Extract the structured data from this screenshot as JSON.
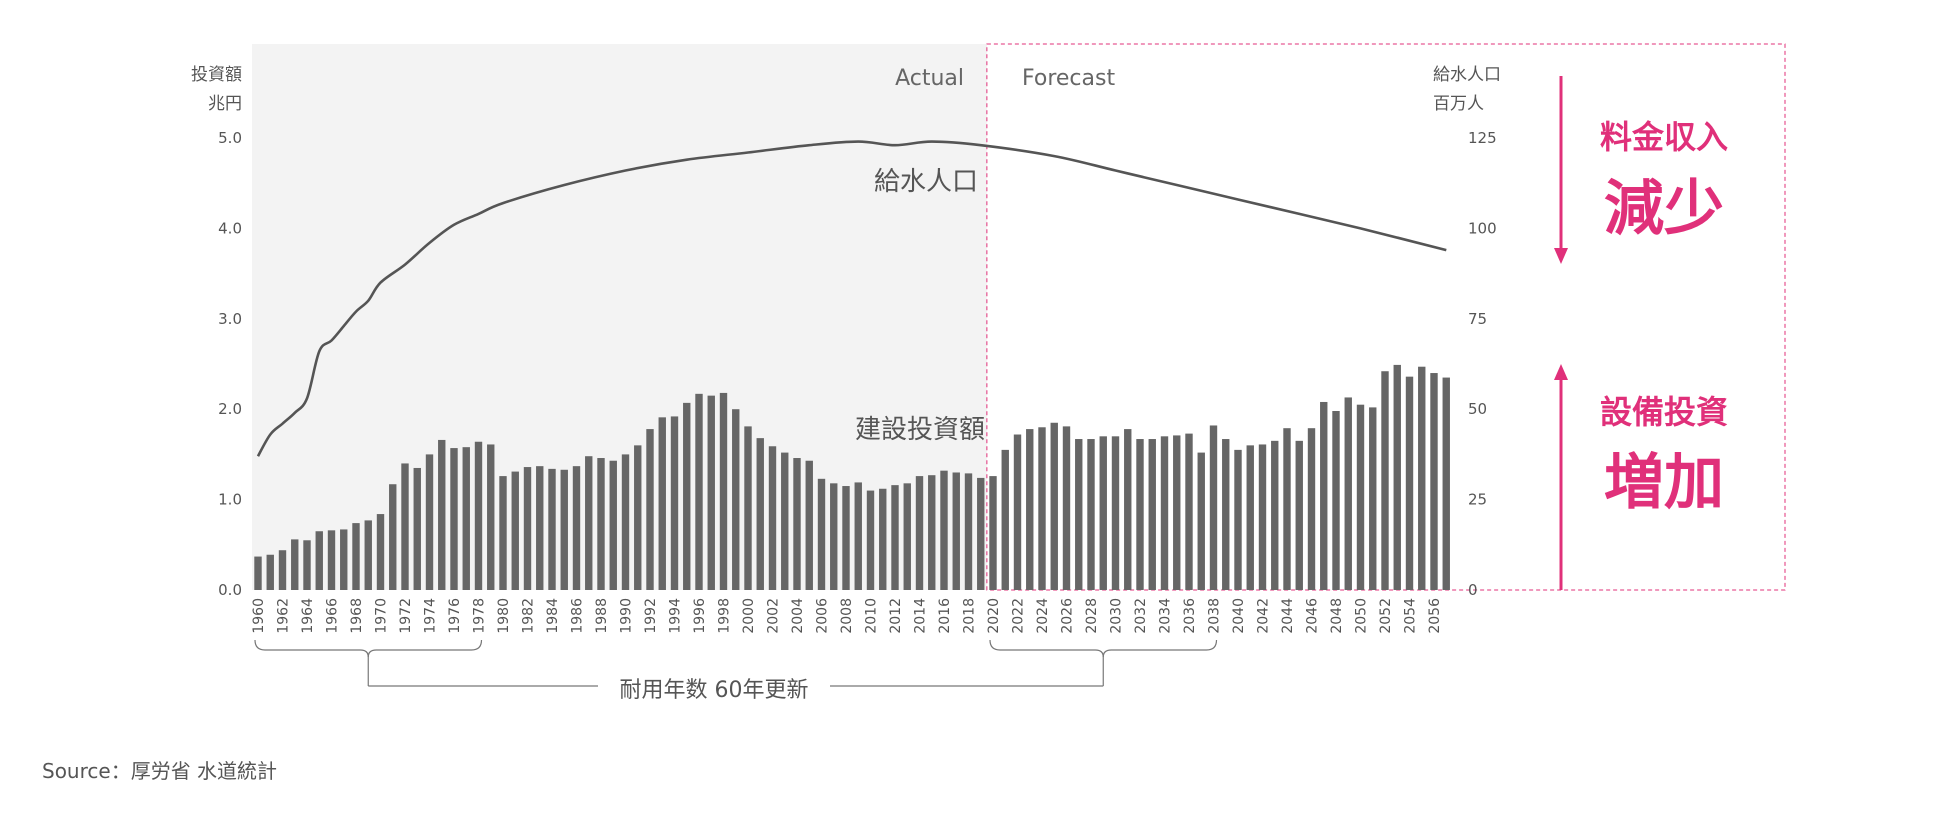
{
  "colors": {
    "accent": "#e0307a",
    "bar": "#666666",
    "line": "#555555",
    "actual_bg": "#f3f3f3"
  },
  "chart_data": {
    "type": "bar",
    "labels": {
      "y_left_title_1": "投資額",
      "y_left_title_2": "兆円",
      "y_right_title_1": "給水人口",
      "y_right_title_2": "百万人",
      "actual": "Actual",
      "forecast": "Forecast",
      "population_series": "給水人口",
      "investment_series": "建設投資額",
      "renewal_note": "耐用年数 60年更新",
      "revenue_small": "料金収入",
      "revenue_big": "減少",
      "capex_small": "設備投資",
      "capex_big": "増加",
      "source": "Source：厚労省 水道統計"
    },
    "y_left": {
      "min": 0,
      "max": 5,
      "ticks": [
        "0.0",
        "1.0",
        "2.0",
        "3.0",
        "4.0",
        "5.0"
      ]
    },
    "y_right": {
      "min": 0,
      "max": 125,
      "ticks": [
        "0",
        "25",
        "50",
        "75",
        "100",
        "125"
      ]
    },
    "forecast_start_year": 2020,
    "years": [
      1960,
      1961,
      1962,
      1963,
      1964,
      1965,
      1966,
      1967,
      1968,
      1969,
      1970,
      1971,
      1972,
      1973,
      1974,
      1975,
      1976,
      1977,
      1978,
      1979,
      1980,
      1981,
      1982,
      1983,
      1984,
      1985,
      1986,
      1987,
      1988,
      1989,
      1990,
      1991,
      1992,
      1993,
      1994,
      1995,
      1996,
      1997,
      1998,
      1999,
      2000,
      2001,
      2002,
      2003,
      2004,
      2005,
      2006,
      2007,
      2008,
      2009,
      2010,
      2011,
      2012,
      2013,
      2014,
      2015,
      2016,
      2017,
      2018,
      2019,
      2020,
      2021,
      2022,
      2023,
      2024,
      2025,
      2026,
      2027,
      2028,
      2029,
      2030,
      2031,
      2032,
      2033,
      2034,
      2035,
      2036,
      2037,
      2038,
      2039,
      2040,
      2041,
      2042,
      2043,
      2044,
      2045,
      2046,
      2047,
      2048,
      2049,
      2050,
      2051,
      2052,
      2053,
      2054,
      2055,
      2056,
      2057
    ],
    "xtick_labels": [
      "1960",
      "1962",
      "1964",
      "1966",
      "1968",
      "1970",
      "1972",
      "1974",
      "1976",
      "1978",
      "1980",
      "1982",
      "1984",
      "1986",
      "1988",
      "1990",
      "1992",
      "1994",
      "1996",
      "1998",
      "2000",
      "2002",
      "2004",
      "2006",
      "2008",
      "2010",
      "2012",
      "2014",
      "2016",
      "2018",
      "2020",
      "2022",
      "2024",
      "2026",
      "2028",
      "2030",
      "2032",
      "2034",
      "2036",
      "2038",
      "2040",
      "2042",
      "2044",
      "2046",
      "2048",
      "2050",
      "2052",
      "2054",
      "2056"
    ],
    "series": [
      {
        "name": "建設投資額",
        "axis": "left",
        "type": "bar",
        "values": [
          0.37,
          0.39,
          0.44,
          0.56,
          0.55,
          0.65,
          0.66,
          0.67,
          0.74,
          0.77,
          0.84,
          1.17,
          1.4,
          1.35,
          1.5,
          1.66,
          1.57,
          1.58,
          1.64,
          1.61,
          1.26,
          1.31,
          1.36,
          1.37,
          1.34,
          1.33,
          1.37,
          1.48,
          1.46,
          1.43,
          1.5,
          1.6,
          1.78,
          1.91,
          1.92,
          2.07,
          2.17,
          2.15,
          2.18,
          2.0,
          1.81,
          1.68,
          1.59,
          1.52,
          1.46,
          1.43,
          1.23,
          1.18,
          1.15,
          1.19,
          1.1,
          1.12,
          1.16,
          1.18,
          1.26,
          1.27,
          1.32,
          1.3,
          1.29,
          1.24,
          1.26,
          1.55,
          1.72,
          1.78,
          1.8,
          1.85,
          1.81,
          1.67,
          1.67,
          1.7,
          1.7,
          1.78,
          1.67,
          1.67,
          1.7,
          1.71,
          1.73,
          1.52,
          1.82,
          1.67,
          1.55,
          1.6,
          1.61,
          1.65,
          1.79,
          1.65,
          1.79,
          2.08,
          1.98,
          2.13,
          2.05,
          2.02,
          2.42,
          2.49,
          2.36,
          2.47,
          2.4,
          2.35
        ]
      },
      {
        "name": "給水人口",
        "axis": "right",
        "type": "line",
        "x": [
          1960,
          1961,
          1962,
          1963,
          1964,
          1965,
          1966,
          1967,
          1968,
          1969,
          1970,
          1972,
          1974,
          1976,
          1978,
          1980,
          1985,
          1990,
          1995,
          2000,
          2005,
          2009,
          2012,
          2015,
          2019,
          2025,
          2030,
          2035,
          2040,
          2045,
          2050,
          2057
        ],
        "values": [
          37,
          43,
          46,
          49,
          53,
          66,
          69,
          73,
          77,
          80,
          85,
          90,
          96,
          101,
          104,
          107,
          112,
          116,
          119,
          121,
          123,
          124,
          123,
          124,
          123,
          120,
          116,
          112,
          108,
          104,
          100,
          94
        ]
      }
    ]
  }
}
